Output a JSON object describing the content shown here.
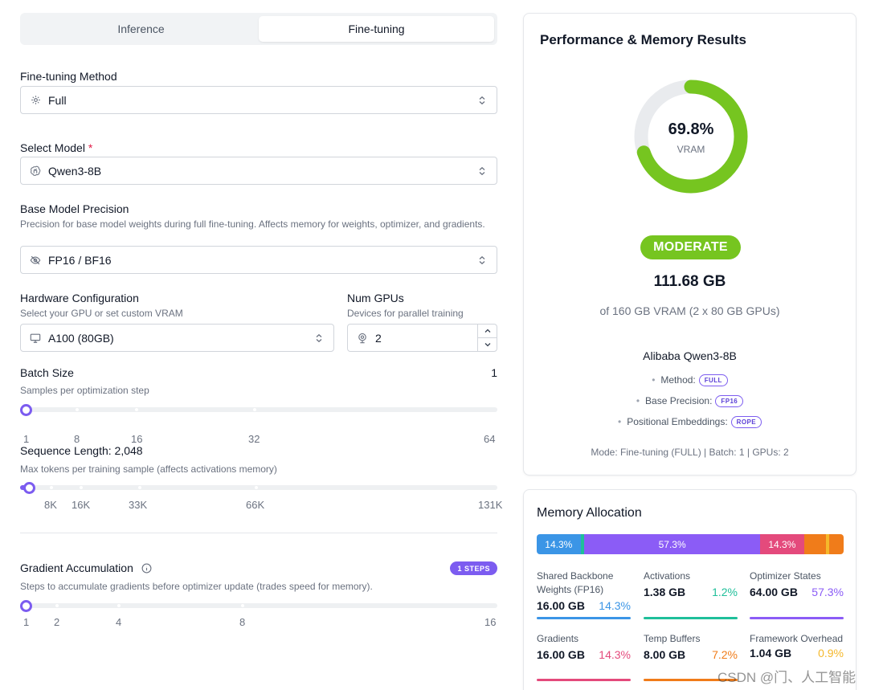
{
  "tabs": {
    "inference": "Inference",
    "finetuning": "Fine-tuning",
    "active": "finetuning"
  },
  "method": {
    "label": "Fine-tuning Method",
    "value": "Full"
  },
  "model": {
    "label": "Select Model",
    "required_mark": "*",
    "value": "Qwen3-8B"
  },
  "precision": {
    "label": "Base Model Precision",
    "hint": "Precision for base model weights during full fine-tuning. Affects memory for weights, optimizer, and gradients.",
    "value": "FP16 / BF16"
  },
  "hardware": {
    "label": "Hardware Configuration",
    "hint": "Select your GPU or set custom VRAM",
    "value": "A100 (80GB)"
  },
  "gpus": {
    "label": "Num GPUs",
    "hint": "Devices for parallel training",
    "value": "2"
  },
  "batch": {
    "label": "Batch Size",
    "hint": "Samples per optimization step",
    "value": "1",
    "ticks": [
      "1",
      "8",
      "16",
      "32",
      "64"
    ],
    "current": 1,
    "min": 1,
    "max": 64
  },
  "seqlen": {
    "label": "Sequence Length: 2,048",
    "hint": "Max tokens per training sample (affects activations memory)",
    "ticks": [
      "8K",
      "16K",
      "33K",
      "66K",
      "131K"
    ],
    "current": 2048
  },
  "gradacc": {
    "label": "Gradient Accumulation",
    "badge": "1 STEPS",
    "hint": "Steps to accumulate gradients before optimizer update (trades speed for memory).",
    "ticks": [
      "1",
      "2",
      "4",
      "8",
      "16"
    ],
    "current": 1
  },
  "results": {
    "title": "Performance & Memory Results",
    "vram_pct_text": "69.8%",
    "vram_fraction": 0.698,
    "vram_label": "VRAM",
    "status": "MODERATE",
    "memory": "111.68 GB",
    "of_text": "of 160 GB VRAM (2 x 80 GB GPUs)",
    "model_name": "Alibaba Qwen3-8B",
    "props": [
      {
        "label": "Method:",
        "pill": "FULL"
      },
      {
        "label": "Base Precision:",
        "pill": "FP16"
      },
      {
        "label": "Positional Embeddings:",
        "pill": "ROPE"
      }
    ],
    "mode_line": "Mode: Fine-tuning (FULL) | Batch: 1 | GPUs: 2"
  },
  "colors": {
    "accent": "#7c5cf0",
    "green": "#76c520",
    "weights": "#3b95e6",
    "activations": "#1fbf9a",
    "optimizer": "#8b5cf6",
    "gradients": "#e44a7c",
    "temp": "#f07c1a",
    "overhead": "#f5b82b"
  },
  "allocation": {
    "title": "Memory Allocation",
    "bar": [
      {
        "key": "weights",
        "label": "14.3%",
        "fraction": 0.143
      },
      {
        "key": "activations",
        "label": "",
        "fraction": 0.012
      },
      {
        "key": "optimizer",
        "label": "57.3%",
        "fraction": 0.573
      },
      {
        "key": "gradients",
        "label": "14.3%",
        "fraction": 0.143
      },
      {
        "key": "temp",
        "label": "",
        "fraction": 0.072
      },
      {
        "key": "overhead",
        "label": "",
        "fraction": 0.009
      },
      {
        "key": "tail",
        "label": "",
        "fraction": 0.048
      }
    ],
    "items": [
      {
        "name": "Shared Backbone Weights (FP16)",
        "value": "16.00 GB",
        "pct": "14.3%",
        "color": "#3b95e6"
      },
      {
        "name": "Activations",
        "value": "1.38 GB",
        "pct": "1.2%",
        "color": "#1fbf9a"
      },
      {
        "name": "Optimizer States",
        "value": "64.00 GB",
        "pct": "57.3%",
        "color": "#8b5cf6"
      },
      {
        "name": "Gradients",
        "value": "16.00 GB",
        "pct": "14.3%",
        "color": "#e44a7c"
      },
      {
        "name": "Temp Buffers",
        "value": "8.00 GB",
        "pct": "7.2%",
        "color": "#f07c1a"
      },
      {
        "name": "Framework Overhead",
        "value": "1.04 GB",
        "pct": "0.9%",
        "color": "#f5b82b"
      }
    ]
  },
  "watermark": "CSDN @门、人工智能"
}
